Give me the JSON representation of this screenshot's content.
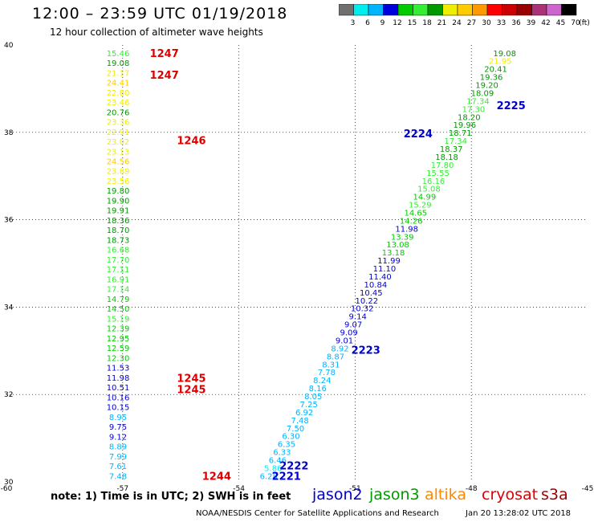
{
  "header": {
    "title": "12:00 – 23:59 UTC 01/19/2018",
    "subtitle": "12 hour collection of altimeter wave heights"
  },
  "colorbar": {
    "ticks": [
      "3",
      "6",
      "9",
      "12",
      "15",
      "18",
      "21",
      "24",
      "27",
      "30",
      "33",
      "36",
      "39",
      "42",
      "45",
      "70"
    ],
    "unit": "(ft)",
    "colors": [
      "#707070",
      "#00eeee",
      "#00b4ff",
      "#0000dd",
      "#00cc00",
      "#33ee33",
      "#009900",
      "#eeee00",
      "#ffcc00",
      "#ff9900",
      "#ff0000",
      "#cc0000",
      "#990000",
      "#aa3377",
      "#cc66cc",
      "#000000"
    ]
  },
  "chart_data": {
    "type": "scatter",
    "title": "12:00 – 23:59 UTC 01/19/2018",
    "subtitle": "12 hour collection of altimeter wave heights",
    "xlim": [
      -60,
      -45
    ],
    "ylim": [
      30,
      40
    ],
    "x_ticks": [
      "-60",
      "-57",
      "-54",
      "-51",
      "-48",
      "-45"
    ],
    "y_ticks": [
      "30",
      "32",
      "34",
      "36",
      "38",
      "40"
    ],
    "grid": "dotted",
    "units": "SWH in feet",
    "series": [
      {
        "name": "s3a",
        "color_key": "s3a",
        "track": "left",
        "x": -57.12,
        "y_start": 39.82,
        "y_end": 30.14,
        "values": [
          "15.46",
          "19.08",
          "21.17",
          "24.41",
          "22.80",
          "23.46",
          "20.76",
          "23.36",
          "22.91",
          "23.02",
          "23.13",
          "24.56",
          "23.89",
          "23.56",
          "19.80",
          "19.90",
          "19.91",
          "18.36",
          "18.70",
          "18.73",
          "16.68",
          "17.70",
          "17.11",
          "16.91",
          "17.14",
          "14.79",
          "14.50",
          "15.19",
          "12.39",
          "12.95",
          "12.59",
          "12.30",
          "11.53",
          "11.98",
          "10.51",
          "10.16",
          "10.15",
          "8.95",
          "9.75",
          "9.12",
          "8.89",
          "7.99",
          "7.61",
          "7.48"
        ]
      },
      {
        "name": "jason2",
        "color_key": "jason2",
        "track": "diagonal",
        "x_start": -47.14,
        "y_start": 39.82,
        "x_end": -53.23,
        "y_end": 30.14,
        "values": [
          "19.08",
          "21.95",
          "20.41",
          "19.36",
          "19.20",
          "18.09",
          "17.34",
          "17.30",
          "18.20",
          "19.96",
          "18.71",
          "17.34",
          "18.37",
          "18.18",
          "17.80",
          "15.55",
          "16.16",
          "15.08",
          "14.99",
          "15.29",
          "14.65",
          "14.26",
          "11.98",
          "13.39",
          "13.08",
          "13.18",
          "11.99",
          "11.10",
          "11.40",
          "10.84",
          "10.45",
          "10.22",
          "10.32",
          "9.14",
          "9.07",
          "9.09",
          "9.01",
          "8.92",
          "8.87",
          "8.31",
          "7.78",
          "8.24",
          "8.16",
          "8.05",
          "7.25",
          "6.92",
          "7.48",
          "7.50",
          "6.30",
          "6.35",
          "6.33",
          "6.46",
          "5.86",
          "6.28"
        ]
      }
    ],
    "cycle_labels": [
      {
        "text": "1247",
        "color": "#dd0000",
        "x": -56.3,
        "y": 39.82
      },
      {
        "text": "1247",
        "color": "#dd0000",
        "x": -56.3,
        "y": 39.32
      },
      {
        "text": "1246",
        "color": "#dd0000",
        "x": -55.6,
        "y": 37.82
      },
      {
        "text": "1245",
        "color": "#dd0000",
        "x": -55.6,
        "y": 32.38
      },
      {
        "text": "1245",
        "color": "#dd0000",
        "x": -55.6,
        "y": 32.12
      },
      {
        "text": "1244",
        "color": "#dd0000",
        "x": -54.95,
        "y": 30.14
      },
      {
        "text": "2225",
        "color": "#0000cc",
        "x": -47.35,
        "y": 38.62
      },
      {
        "text": "2224",
        "color": "#0000cc",
        "x": -49.75,
        "y": 37.98
      },
      {
        "text": "2223",
        "color": "#0000cc",
        "x": -51.1,
        "y": 33.02
      },
      {
        "text": "2222",
        "color": "#0000cc",
        "x": -52.95,
        "y": 30.38
      },
      {
        "text": "2221",
        "color": "#0000cc",
        "x": -53.15,
        "y": 30.14
      }
    ]
  },
  "footer": {
    "note": "note:  1) Time is in UTC;  2) SWH is in feet",
    "satellites": [
      {
        "name": "jason2",
        "color": "#0000cc"
      },
      {
        "name": "jason3",
        "color": "#009900"
      },
      {
        "name": "altika",
        "color": "#ff8800"
      },
      {
        "name": "cryosat",
        "color": "#dd0000"
      },
      {
        "name": "s3a",
        "color": "#990000"
      }
    ],
    "credit": "NOAA/NESDIS Center for Satellite Applications and Research",
    "timestamp": "Jan 20 13:28:02 UTC 2018"
  }
}
